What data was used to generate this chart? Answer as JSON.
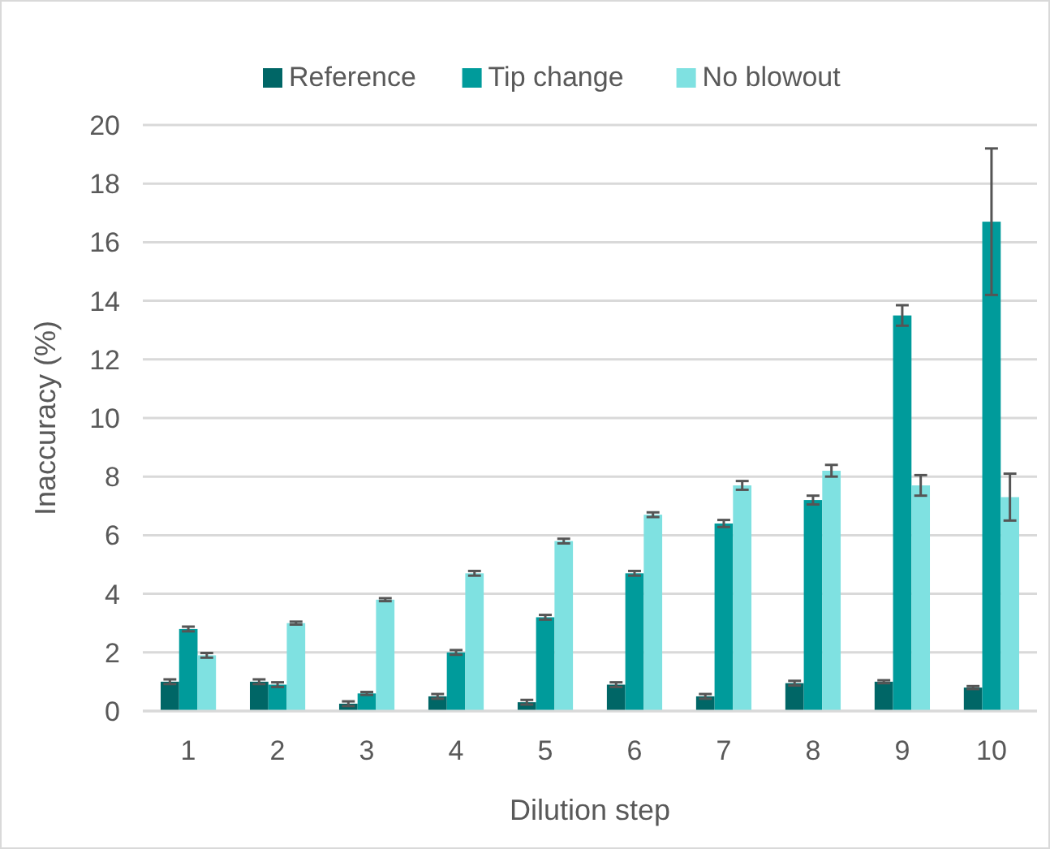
{
  "chart_data": {
    "type": "bar",
    "xlabel": "Dilution step",
    "ylabel": "Inaccuracy (%)",
    "categories": [
      "1",
      "2",
      "3",
      "4",
      "5",
      "6",
      "7",
      "8",
      "9",
      "10"
    ],
    "series": [
      {
        "name": "Reference",
        "color": "#006666",
        "values": [
          1.0,
          1.0,
          0.25,
          0.5,
          0.3,
          0.9,
          0.5,
          0.95,
          1.0,
          0.8
        ],
        "errors": [
          0.08,
          0.08,
          0.08,
          0.08,
          0.08,
          0.08,
          0.08,
          0.08,
          0.05,
          0.05
        ]
      },
      {
        "name": "Tip change",
        "color": "#009b9b",
        "values": [
          2.8,
          0.9,
          0.6,
          2.0,
          3.2,
          4.7,
          6.4,
          7.2,
          13.5,
          16.7
        ],
        "errors": [
          0.08,
          0.08,
          0.05,
          0.08,
          0.08,
          0.08,
          0.12,
          0.15,
          0.35,
          2.5
        ]
      },
      {
        "name": "No blowout",
        "color": "#7fe1e1",
        "values": [
          1.9,
          3.0,
          3.8,
          4.7,
          5.8,
          6.7,
          7.7,
          8.2,
          7.7,
          7.3
        ],
        "errors": [
          0.08,
          0.05,
          0.05,
          0.08,
          0.08,
          0.08,
          0.15,
          0.2,
          0.35,
          0.8
        ]
      }
    ],
    "ylim": [
      0,
      20
    ],
    "yticks": [
      0,
      2,
      4,
      6,
      8,
      10,
      12,
      14,
      16,
      18,
      20
    ],
    "grid": "y",
    "legend": "top"
  }
}
